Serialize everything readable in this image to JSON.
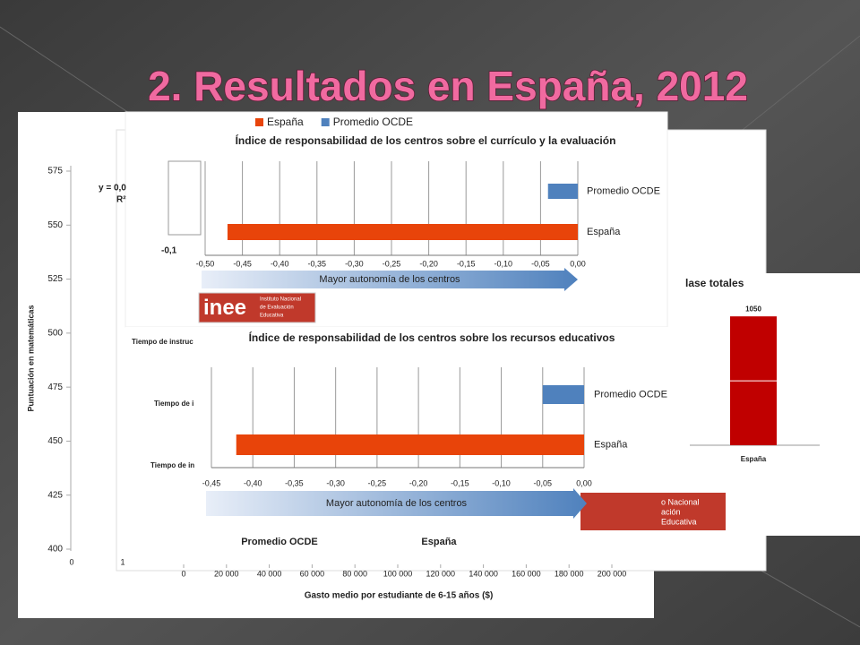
{
  "slide_title": "2. Resultados en España, 2012",
  "chart_data": [
    {
      "type": "hbar",
      "title": "Índice de responsabilidad de los centros sobre el currículo y la evaluación",
      "legend": [
        {
          "name": "España",
          "color": "#e8440a"
        },
        {
          "name": "Promedio OCDE",
          "color": "#4f81bd"
        }
      ],
      "categories": [
        "Promedio OCDE",
        "España"
      ],
      "values": [
        -0.04,
        -0.47
      ],
      "colors": [
        "#4f81bd",
        "#e8440a"
      ],
      "xlim": [
        -0.5,
        0
      ],
      "xticks": [
        {
          "value": -0.5,
          "label": "-0,50"
        },
        {
          "value": -0.45,
          "label": "-0,45"
        },
        {
          "value": -0.4,
          "label": "-0,40"
        },
        {
          "value": -0.35,
          "label": "-0,35"
        },
        {
          "value": -0.3,
          "label": "-0,30"
        },
        {
          "value": -0.25,
          "label": "-0,25"
        },
        {
          "value": -0.2,
          "label": "-0,20"
        },
        {
          "value": -0.15,
          "label": "-0,15"
        },
        {
          "value": -0.1,
          "label": "-0,10"
        },
        {
          "value": -0.05,
          "label": "-0,05"
        },
        {
          "value": 0,
          "label": "0,00"
        }
      ],
      "grid": true,
      "arrow_label": "Mayor autonomía de los centros",
      "logo": {
        "name": "inee",
        "lines": [
          "Instituto Nacional",
          "de Evaluación",
          "Educativa"
        ]
      }
    },
    {
      "type": "hbar",
      "title": "Índice de responsabilidad de los centros sobre los recursos educativos",
      "categories": [
        "Promedio OCDE",
        "España"
      ],
      "values": [
        -0.05,
        -0.42
      ],
      "colors": [
        "#4f81bd",
        "#e8440a"
      ],
      "xlim": [
        -0.45,
        0
      ],
      "xticks": [
        {
          "value": -0.45,
          "label": "-0,45"
        },
        {
          "value": -0.4,
          "label": "-0,40"
        },
        {
          "value": -0.35,
          "label": "-0,35"
        },
        {
          "value": -0.3,
          "label": "-0,30"
        },
        {
          "value": -0.25,
          "label": "-0,25"
        },
        {
          "value": -0.2,
          "label": "-0,20"
        },
        {
          "value": -0.15,
          "label": "-0,15"
        },
        {
          "value": -0.1,
          "label": "-0,10"
        },
        {
          "value": -0.05,
          "label": "-0,05"
        },
        {
          "value": 0,
          "label": "0,00"
        }
      ],
      "grid": true,
      "arrow_label": "Mayor autonomía de los centros"
    },
    {
      "type": "scatter",
      "ylabel": "Puntuación en matemáticas",
      "xlabel": "Gasto medio por estudiante de 6-15 años ($)",
      "ylim": [
        400,
        575
      ],
      "yticks": [
        400,
        425,
        450,
        475,
        500,
        525,
        550,
        575
      ],
      "xlim": [
        0,
        200000
      ],
      "xticks": [
        0,
        {
          "value": 20000,
          "label": "20 000"
        },
        {
          "value": 40000,
          "label": "40 000"
        },
        {
          "value": 60000,
          "label": "60 000"
        },
        {
          "value": 80000,
          "label": "80 000"
        },
        {
          "value": 100000,
          "label": "100 000"
        },
        {
          "value": 120000,
          "label": "120 000"
        },
        {
          "value": 140000,
          "label": "140 000"
        },
        {
          "value": 160000,
          "label": "160 000"
        },
        {
          "value": 180000,
          "label": "180 000"
        },
        {
          "value": 200000,
          "label": "200 000"
        }
      ],
      "partial_ticks": [
        "0",
        "1"
      ],
      "annotations": [
        "y = 0,0",
        "R²",
        "-0,1",
        "Tiempo de instruc",
        "Tiempo de i",
        "Tiempo de in",
        "Promedio OCDE",
        "España"
      ]
    },
    {
      "type": "bar",
      "title": "lase totales",
      "categories": [
        "España"
      ],
      "values": [
        1050
      ],
      "color": "#c00000",
      "logo_lines": [
        "o Nacional",
        "ación",
        "Educativa"
      ]
    }
  ]
}
